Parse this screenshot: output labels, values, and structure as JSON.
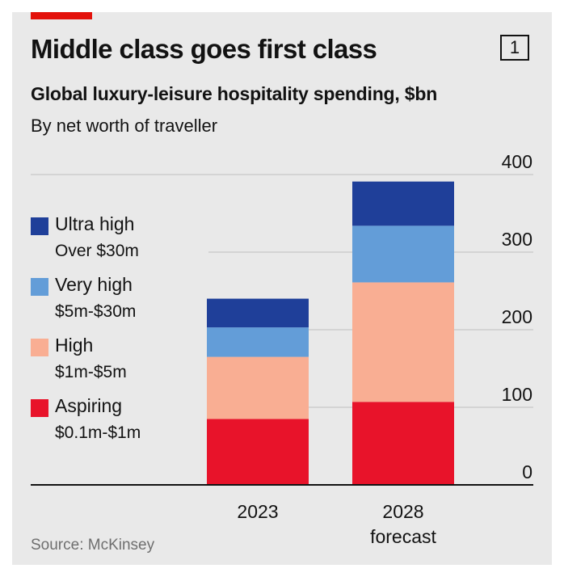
{
  "header": {
    "title": "Middle class goes first class",
    "badge": "1",
    "subtitle": "Global luxury-leisure hospitality spending, $bn",
    "subsubtitle": "By net worth of traveller"
  },
  "colors": {
    "accent": "#e3120b",
    "ultra_high": "#1f3f99",
    "very_high": "#639dd8",
    "high": "#f9ae93",
    "aspiring": "#e8132a",
    "grid": "#c8c8c8",
    "axis": "#121212",
    "background": "#e9e9e9"
  },
  "legend": [
    {
      "name": "Ultra high",
      "range": "Over $30m",
      "color_key": "ultra_high"
    },
    {
      "name": "Very high",
      "range": "$5m-$30m",
      "color_key": "very_high"
    },
    {
      "name": "High",
      "range": "$1m-$5m",
      "color_key": "high"
    },
    {
      "name": "Aspiring",
      "range": "$0.1m-$1m",
      "color_key": "aspiring"
    }
  ],
  "chart_data": {
    "type": "bar",
    "stacked": true,
    "title": "Global luxury-leisure hospitality spending, $bn",
    "subtitle": "By net worth of traveller",
    "categories": [
      "2023",
      "2028"
    ],
    "category_sublabels": [
      "",
      "forecast"
    ],
    "series": [
      {
        "name": "Aspiring",
        "values": [
          85,
          107
        ],
        "color": "#e8132a"
      },
      {
        "name": "High",
        "values": [
          80,
          154
        ],
        "color": "#f9ae93"
      },
      {
        "name": "Very high",
        "values": [
          38,
          73
        ],
        "color": "#639dd8"
      },
      {
        "name": "Ultra high",
        "values": [
          37,
          57
        ],
        "color": "#1f3f99"
      }
    ],
    "ylim": [
      0,
      400
    ],
    "yticks": [
      0,
      100,
      200,
      300,
      400
    ],
    "ytick_labels": [
      "0",
      "100",
      "200",
      "300",
      "400"
    ],
    "ylabel": "",
    "xlabel": "",
    "grid": true,
    "legend_position": "left"
  },
  "footer": {
    "source": "Source: McKinsey"
  }
}
